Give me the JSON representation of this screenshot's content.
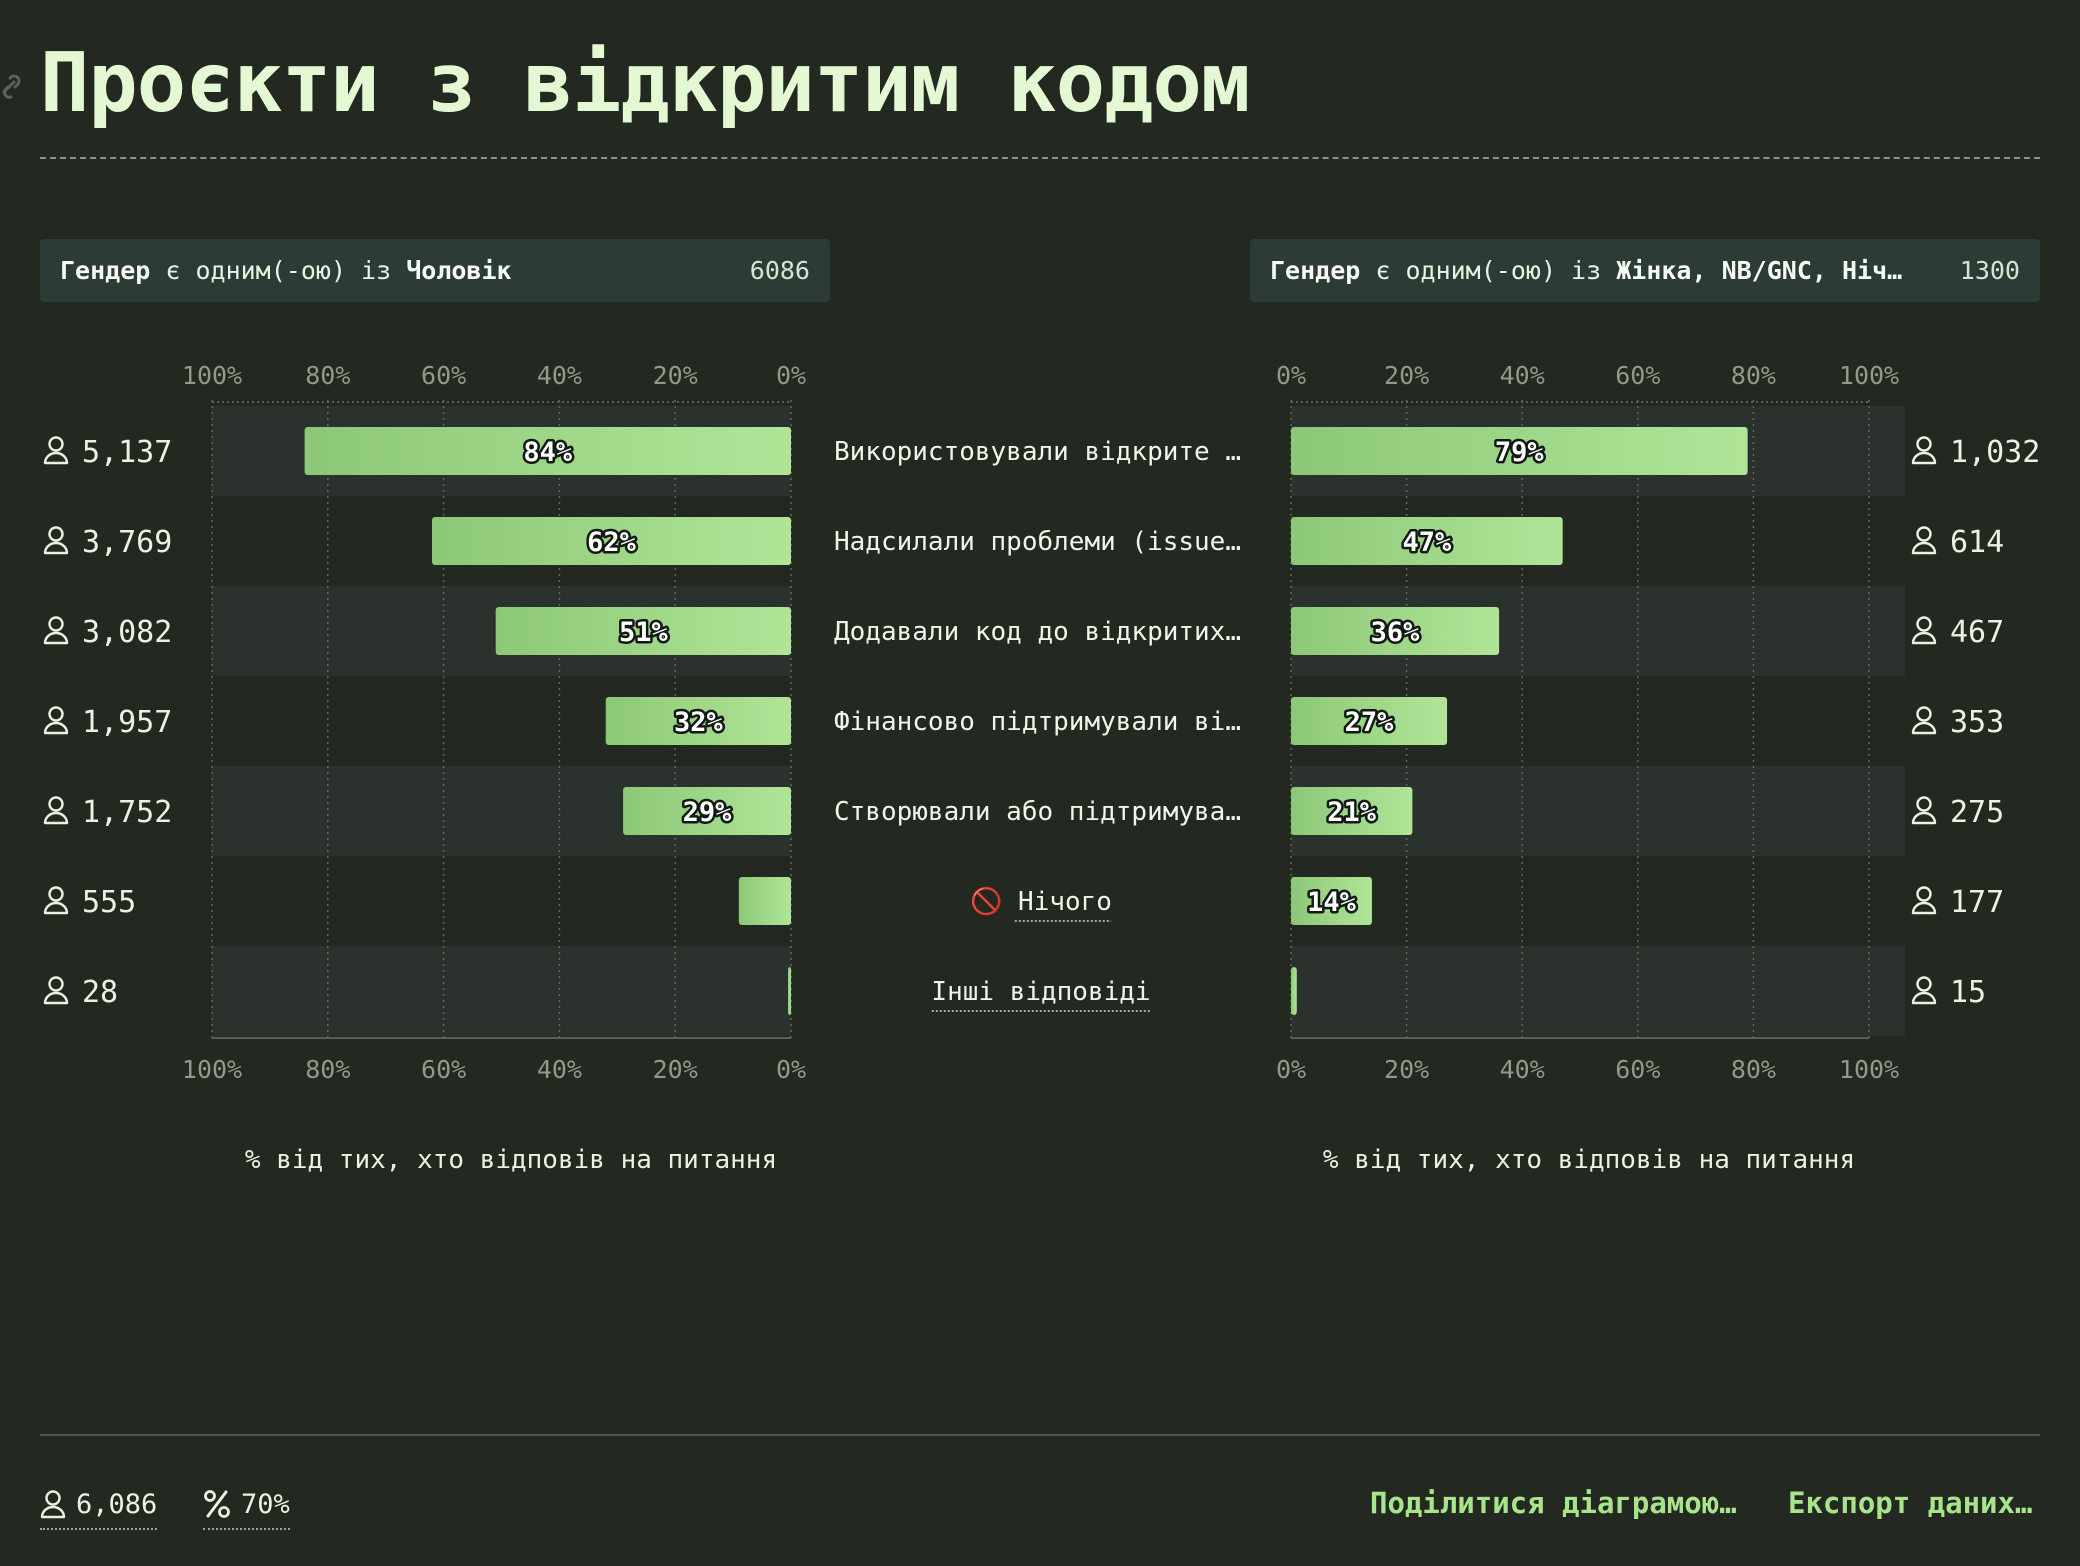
{
  "title": "Проєкти з відкритим кодом",
  "filters": {
    "left": {
      "field": "Гендер",
      "connector": "є одним(-ою) із",
      "value": "Чоловік",
      "count": "6086"
    },
    "right": {
      "field": "Гендер",
      "connector": "є одним(-ою) із",
      "value": "Жінка, NB/GNC, Ніч…",
      "count": "1300"
    }
  },
  "footer": {
    "respondents": "6,086",
    "percent": "70%",
    "share_label": "Поділитися діаграмою…",
    "export_label": "Експорт даних…"
  },
  "icons": {
    "user": "user-icon",
    "percent": "percent-icon",
    "link": "link-icon",
    "no_entry": "no-entry-icon"
  },
  "chart_data": {
    "type": "bar",
    "orientation": "horizontal-mirrored",
    "categories": [
      "Використовували відкрите …",
      "Надсилали проблеми (issue…",
      "Додавали код до відкритих…",
      "Фінансово підтримували ві…",
      "Створювали або підтримува…",
      "Нічого",
      "Інші відповіді"
    ],
    "category_icons": [
      null,
      null,
      null,
      null,
      null,
      "🚫",
      null
    ],
    "category_underlined": [
      false,
      false,
      false,
      false,
      false,
      true,
      true
    ],
    "series": [
      {
        "name": "Чоловік",
        "side": "left",
        "values": [
          84,
          62,
          51,
          32,
          29,
          9,
          0.5
        ],
        "data_labels": [
          "84%",
          "62%",
          "51%",
          "32%",
          "29%",
          "",
          ""
        ],
        "counts": [
          "5,137",
          "3,769",
          "3,082",
          "1,957",
          "1,752",
          "555",
          "28"
        ]
      },
      {
        "name": "Жінка, NB/GNC, Нічого з переліченого",
        "side": "right",
        "values": [
          79,
          47,
          36,
          27,
          21,
          14,
          1
        ],
        "data_labels": [
          "79%",
          "47%",
          "36%",
          "27%",
          "21%",
          "14%",
          ""
        ],
        "counts": [
          "1,032",
          "614",
          "467",
          "353",
          "275",
          "177",
          "15"
        ]
      }
    ],
    "ticks": [
      "0%",
      "20%",
      "40%",
      "60%",
      "80%",
      "100%"
    ],
    "xlim": [
      0,
      100
    ],
    "xlabel": "% від тих, хто відповів на питання",
    "grid": true,
    "colors": {
      "bar_start": "#8cc877",
      "bar_end": "#b0e598",
      "row_alt": "#2b322d",
      "background": "#232920"
    }
  }
}
